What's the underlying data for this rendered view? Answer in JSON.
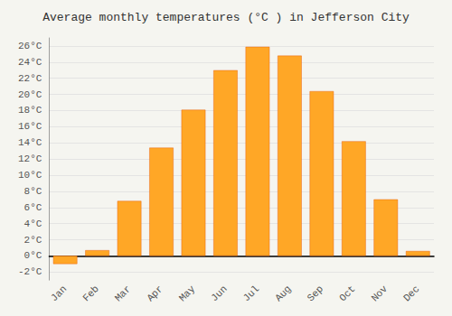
{
  "chart_data": {
    "type": "bar",
    "title": "Average monthly temperatures (°C ) in Jefferson City",
    "categories": [
      "Jan",
      "Feb",
      "Mar",
      "Apr",
      "May",
      "Jun",
      "Jul",
      "Aug",
      "Sep",
      "Oct",
      "Nov",
      "Dec"
    ],
    "values": [
      -1.0,
      0.7,
      6.8,
      13.4,
      18.1,
      23.0,
      25.9,
      24.8,
      20.4,
      14.2,
      7.0,
      0.6
    ],
    "color": "#FFA726",
    "ylim": [
      -3,
      27
    ],
    "yticks": [
      {
        "value": -2,
        "label": "-2°C"
      },
      {
        "value": 0,
        "label": "0°C"
      },
      {
        "value": 2,
        "label": "2°C"
      },
      {
        "value": 4,
        "label": "4°C"
      },
      {
        "value": 6,
        "label": "6°C"
      },
      {
        "value": 8,
        "label": "8°C"
      },
      {
        "value": 10,
        "label": "10°C"
      },
      {
        "value": 12,
        "label": "12°C"
      },
      {
        "value": 14,
        "label": "14°C"
      },
      {
        "value": 16,
        "label": "16°C"
      },
      {
        "value": 18,
        "label": "18°C"
      },
      {
        "value": 20,
        "label": "20°C"
      },
      {
        "value": 22,
        "label": "22°C"
      },
      {
        "value": 24,
        "label": "24°C"
      },
      {
        "value": 26,
        "label": "26°C"
      }
    ],
    "grid": true
  }
}
